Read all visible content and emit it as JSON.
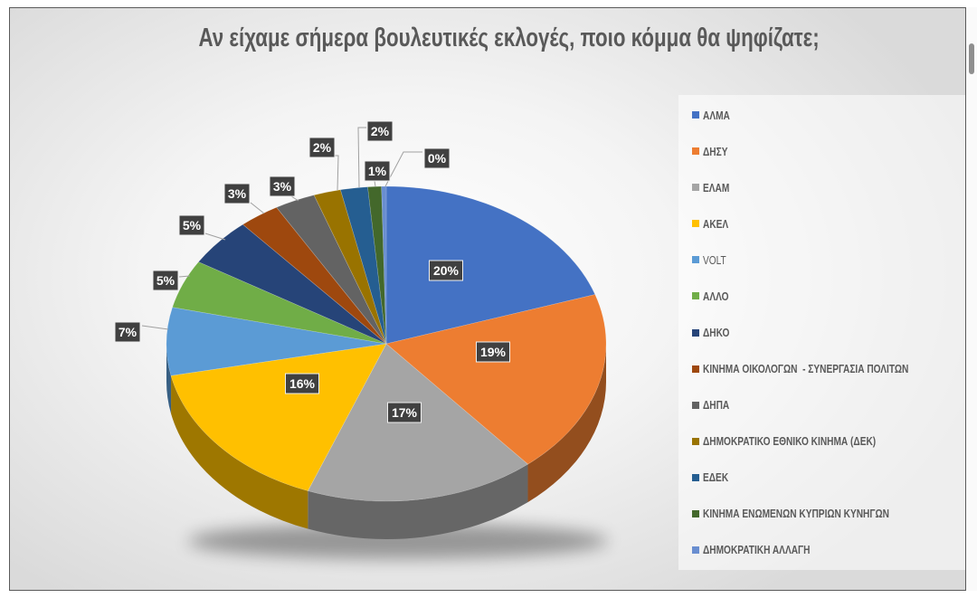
{
  "chart_data": {
    "type": "pie",
    "style": "3d",
    "title": "Αν είχαμε σήμερα βουλευτικές εκλογές, ποιο κόμμα θα ψηφίζατε;",
    "labels": [
      "ΑΛΜΑ",
      "ΔΗΣΥ",
      "ΕΛΑΜ",
      "ΑΚΕΛ",
      "VOLT",
      "ΑΛΛΟ",
      "ΔΗΚΟ",
      "ΚΙΝΗΜΑ ΟΙΚΟΛΟΓΩΝ  - ΣΥΝΕΡΓΑΣΙΑ ΠΟΛΙΤΩΝ",
      "ΔΗΠΑ",
      "ΔΗΜΟΚΡΑΤΙΚΟ ΕΘΝΙΚΟ ΚΙΝΗΜΑ (ΔΕΚ)",
      "ΕΔΕΚ",
      "ΚΙΝΗΜΑ ΕΝΩΜΕΝΩΝ ΚΥΠΡΙΩΝ ΚΥΝΗΓΩΝ",
      "ΔΗΜΟΚΡΑΤΙΚΗ ΑΛΛΑΓΗ"
    ],
    "values": [
      20,
      19,
      17,
      16,
      7,
      5,
      5,
      3,
      3,
      2,
      2,
      1,
      0
    ],
    "data_labels": [
      "20%",
      "19%",
      "17%",
      "16%",
      "7%",
      "5%",
      "5%",
      "3%",
      "3%",
      "2%",
      "2%",
      "1%",
      "0%"
    ],
    "colors": [
      "#4472C4",
      "#ED7D31",
      "#A5A5A5",
      "#FFC000",
      "#5B9BD5",
      "#70AD47",
      "#264478",
      "#9E480E",
      "#636363",
      "#997300",
      "#255E91",
      "#43682B",
      "#698ED0"
    ],
    "legend_position": "right"
  }
}
